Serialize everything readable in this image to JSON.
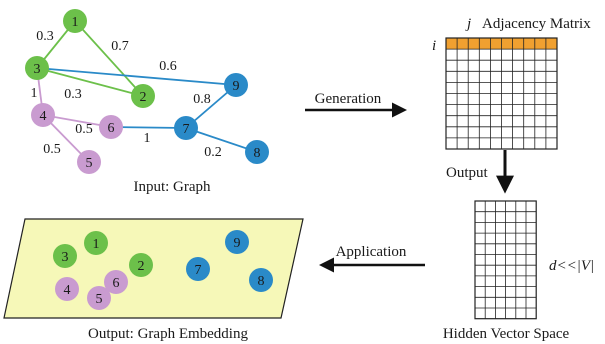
{
  "colors": {
    "green": "#6cc04a",
    "purple": "#c99bd0",
    "blue": "#2a8ac8",
    "orange": "#f0a030",
    "panel": "#f6f8b8",
    "arrow": "#111111"
  },
  "graph": {
    "caption": "Input: Graph",
    "nodes": [
      {
        "id": "1",
        "group": "green"
      },
      {
        "id": "2",
        "group": "green"
      },
      {
        "id": "3",
        "group": "green"
      },
      {
        "id": "4",
        "group": "purple"
      },
      {
        "id": "5",
        "group": "purple"
      },
      {
        "id": "6",
        "group": "purple"
      },
      {
        "id": "7",
        "group": "blue"
      },
      {
        "id": "8",
        "group": "blue"
      },
      {
        "id": "9",
        "group": "blue"
      }
    ],
    "edges": [
      {
        "from": "1",
        "to": "3",
        "weight": "0.3",
        "group": "green"
      },
      {
        "from": "1",
        "to": "2",
        "weight": "0.7",
        "group": "green"
      },
      {
        "from": "3",
        "to": "2",
        "weight": "0.3",
        "group": "green"
      },
      {
        "from": "3",
        "to": "9",
        "weight": "0.6",
        "group": "blue"
      },
      {
        "from": "3",
        "to": "4",
        "weight": "1",
        "group": "purple"
      },
      {
        "from": "4",
        "to": "6",
        "weight": "0.5",
        "group": "purple"
      },
      {
        "from": "4",
        "to": "5",
        "weight": "0.5",
        "group": "purple"
      },
      {
        "from": "6",
        "to": "7",
        "weight": "1",
        "group": "blue"
      },
      {
        "from": "7",
        "to": "9",
        "weight": "0.8",
        "group": "blue"
      },
      {
        "from": "7",
        "to": "8",
        "weight": "0.2",
        "group": "blue"
      }
    ]
  },
  "matrix": {
    "title": "Adjacency Matrix",
    "row_label": "i",
    "col_label": "j"
  },
  "hidden": {
    "caption": "Hidden Vector Space",
    "dimension_note": "d<<|V|"
  },
  "arrows": {
    "generation": "Generation",
    "output": "Output",
    "application": "Application"
  },
  "embedding": {
    "caption": "Output: Graph Embedding",
    "nodes": [
      {
        "id": "1",
        "group": "green"
      },
      {
        "id": "2",
        "group": "green"
      },
      {
        "id": "3",
        "group": "green"
      },
      {
        "id": "4",
        "group": "purple"
      },
      {
        "id": "5",
        "group": "purple"
      },
      {
        "id": "6",
        "group": "purple"
      },
      {
        "id": "7",
        "group": "blue"
      },
      {
        "id": "8",
        "group": "blue"
      },
      {
        "id": "9",
        "group": "blue"
      }
    ]
  }
}
